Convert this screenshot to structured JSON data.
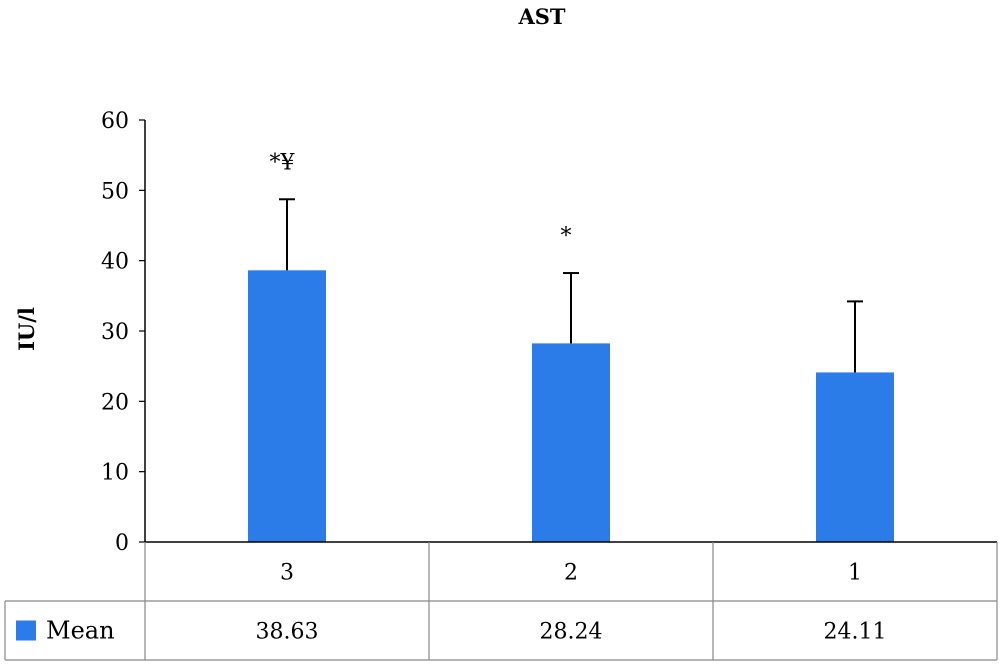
{
  "chart_data": {
    "type": "bar",
    "title": "AST",
    "xlabel": "",
    "ylabel": "IU/l",
    "ylim": [
      0,
      60
    ],
    "yticks": [
      0,
      10,
      20,
      30,
      40,
      50,
      60
    ],
    "categories": [
      "3",
      "2",
      "1"
    ],
    "series": [
      {
        "name": "Mean",
        "values": [
          38.63,
          28.24,
          24.11
        ],
        "value_labels": [
          "38.63",
          "28.24",
          "24.11"
        ],
        "error_plus": [
          10.1,
          10.0,
          10.1
        ],
        "color": "#2b7ce9"
      }
    ],
    "annotations": [
      "*¥",
      "*",
      ""
    ],
    "data_table": true,
    "legend_position": "data-table-left",
    "grid": false
  }
}
